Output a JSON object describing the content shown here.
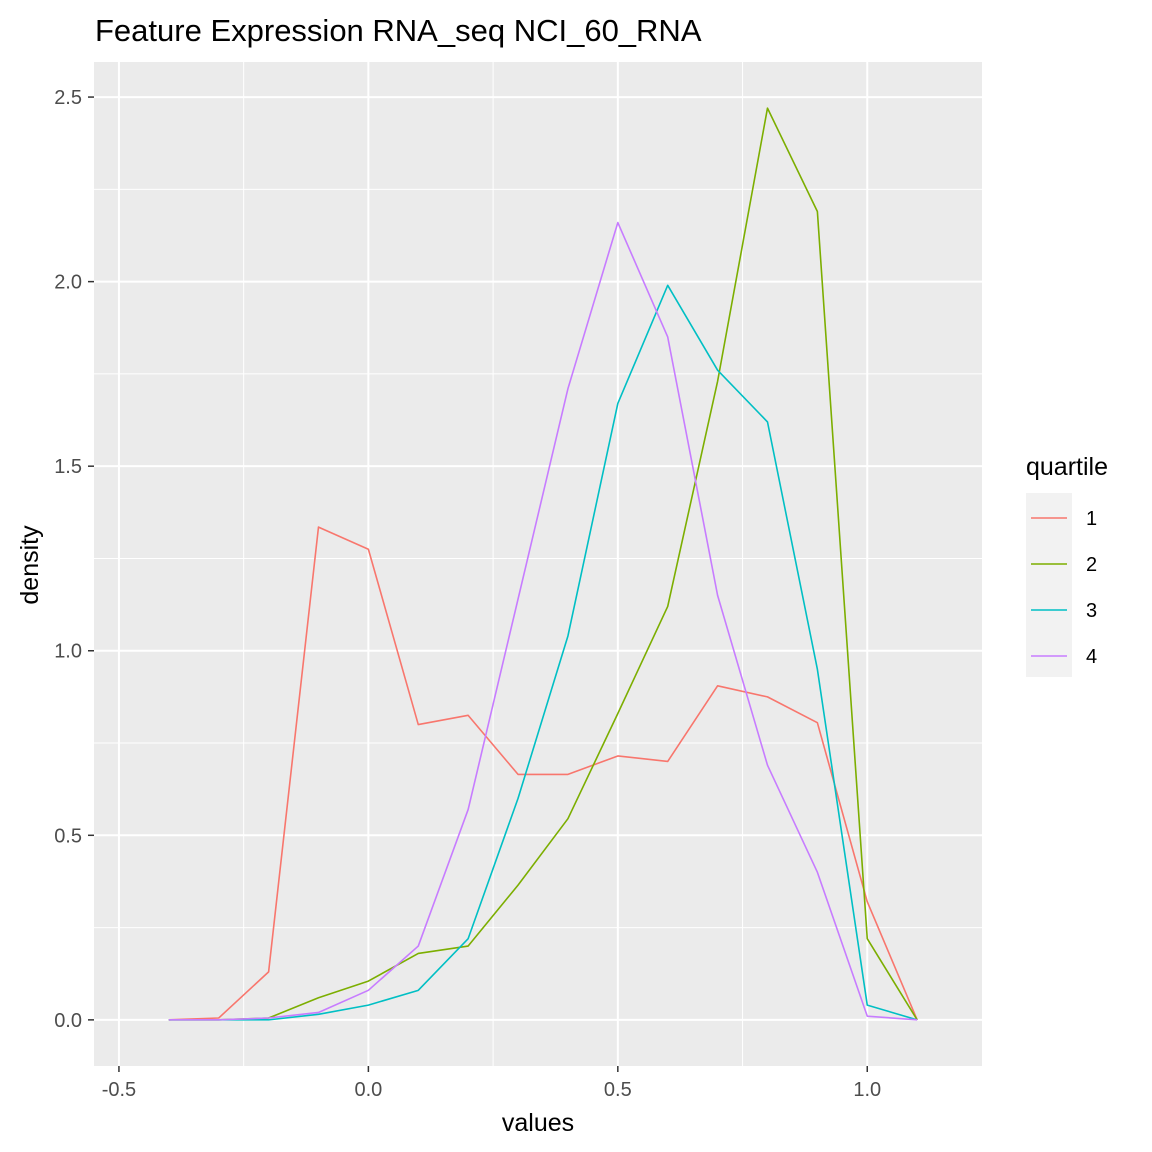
{
  "chart_data": {
    "type": "line",
    "title": "Feature Expression RNA_seq NCI_60_RNA",
    "xlabel": "values",
    "ylabel": "density",
    "xlim": [
      -0.55,
      1.23
    ],
    "ylim": [
      -0.125,
      2.595
    ],
    "x_ticks": [
      -0.5,
      0.0,
      0.5,
      1.0
    ],
    "x_tick_labels": [
      "-0.5",
      "0.0",
      "0.5",
      "1.0"
    ],
    "y_ticks": [
      0.0,
      0.5,
      1.0,
      1.5,
      2.0,
      2.5
    ],
    "y_tick_labels": [
      "0.0",
      "0.5",
      "1.0",
      "1.5",
      "2.0",
      "2.5"
    ],
    "grid": true,
    "legend": {
      "title": "quartile",
      "position": "right"
    },
    "x": [
      -0.4,
      -0.3,
      -0.2,
      -0.1,
      0.0,
      0.1,
      0.2,
      0.3,
      0.4,
      0.5,
      0.6,
      0.7,
      0.8,
      0.9,
      1.0,
      1.1
    ],
    "series": [
      {
        "name": "1",
        "color": "#F8766D",
        "values": [
          0.0,
          0.005,
          0.13,
          1.335,
          1.275,
          0.8,
          0.825,
          0.665,
          0.665,
          0.715,
          0.7,
          0.905,
          0.875,
          0.805,
          0.32,
          0.0
        ]
      },
      {
        "name": "2",
        "color": "#7CAE00",
        "values": [
          0.0,
          0.0,
          0.005,
          0.06,
          0.105,
          0.18,
          0.2,
          0.365,
          0.545,
          0.83,
          1.12,
          1.73,
          2.47,
          2.19,
          0.22,
          0.0
        ]
      },
      {
        "name": "3",
        "color": "#00BFC4",
        "values": [
          0.0,
          0.0,
          0.0,
          0.015,
          0.04,
          0.08,
          0.22,
          0.6,
          1.04,
          1.67,
          1.99,
          1.76,
          1.62,
          0.95,
          0.04,
          0.0
        ]
      },
      {
        "name": "4",
        "color": "#C77CFF",
        "values": [
          0.0,
          0.0,
          0.005,
          0.02,
          0.08,
          0.2,
          0.57,
          1.14,
          1.71,
          2.16,
          1.85,
          1.15,
          0.69,
          0.4,
          0.01,
          0.0
        ]
      }
    ]
  }
}
